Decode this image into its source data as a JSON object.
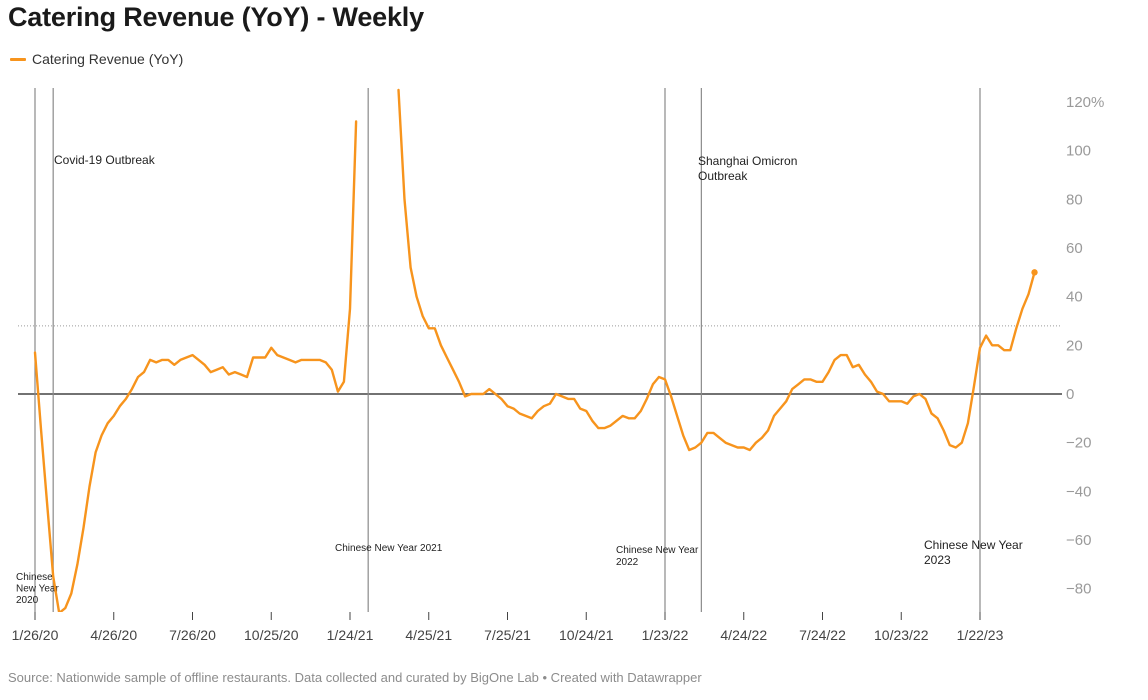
{
  "title": "Catering Revenue (YoY) - Weekly",
  "legend": {
    "label": "Catering Revenue (YoY)",
    "color": "#f7941d"
  },
  "source": "Source: Nationwide sample of offline restaurants. Data collected and curated by BigOne Lab • Created with Datawrapper",
  "chart_data": {
    "type": "line",
    "title": "Catering Revenue (YoY) - Weekly",
    "series": [
      {
        "name": "Catering Revenue (YoY)",
        "color": "#f7941d",
        "values": [
          [
            "2020-01-26",
            17
          ],
          [
            "2020-02-02",
            -15
          ],
          [
            "2020-02-09",
            -45
          ],
          [
            "2020-02-16",
            -75
          ],
          [
            "2020-02-23",
            -90
          ],
          [
            "2020-03-01",
            -88
          ],
          [
            "2020-03-08",
            -82
          ],
          [
            "2020-03-15",
            -70
          ],
          [
            "2020-03-22",
            -55
          ],
          [
            "2020-03-29",
            -38
          ],
          [
            "2020-04-05",
            -24
          ],
          [
            "2020-04-12",
            -17
          ],
          [
            "2020-04-19",
            -12
          ],
          [
            "2020-04-26",
            -9
          ],
          [
            "2020-05-03",
            -5
          ],
          [
            "2020-05-10",
            -2
          ],
          [
            "2020-05-17",
            2
          ],
          [
            "2020-05-24",
            7
          ],
          [
            "2020-05-31",
            9
          ],
          [
            "2020-06-07",
            14
          ],
          [
            "2020-06-14",
            13
          ],
          [
            "2020-06-21",
            14
          ],
          [
            "2020-06-28",
            14
          ],
          [
            "2020-07-05",
            12
          ],
          [
            "2020-07-12",
            14
          ],
          [
            "2020-07-19",
            15
          ],
          [
            "2020-07-26",
            16
          ],
          [
            "2020-08-02",
            14
          ],
          [
            "2020-08-09",
            12
          ],
          [
            "2020-08-16",
            9
          ],
          [
            "2020-08-23",
            10
          ],
          [
            "2020-08-30",
            11
          ],
          [
            "2020-09-06",
            8
          ],
          [
            "2020-09-13",
            9
          ],
          [
            "2020-09-20",
            8
          ],
          [
            "2020-09-27",
            7
          ],
          [
            "2020-10-04",
            15
          ],
          [
            "2020-10-11",
            15
          ],
          [
            "2020-10-18",
            15
          ],
          [
            "2020-10-25",
            19
          ],
          [
            "2020-11-01",
            16
          ],
          [
            "2020-11-08",
            15
          ],
          [
            "2020-11-15",
            14
          ],
          [
            "2020-11-22",
            13
          ],
          [
            "2020-11-29",
            14
          ],
          [
            "2020-12-06",
            14
          ],
          [
            "2020-12-13",
            14
          ],
          [
            "2020-12-20",
            14
          ],
          [
            "2020-12-27",
            13
          ],
          [
            "2021-01-03",
            10
          ],
          [
            "2021-01-10",
            1
          ],
          [
            "2021-01-17",
            5
          ],
          [
            "2021-01-24",
            35
          ],
          [
            "2021-01-31",
            112
          ],
          [
            "2021-03-21",
            125
          ],
          [
            "2021-03-28",
            80
          ],
          [
            "2021-04-04",
            52
          ],
          [
            "2021-04-11",
            40
          ],
          [
            "2021-04-18",
            32
          ],
          [
            "2021-04-25",
            27
          ],
          [
            "2021-05-02",
            27
          ],
          [
            "2021-05-09",
            20
          ],
          [
            "2021-05-16",
            15
          ],
          [
            "2021-05-23",
            10
          ],
          [
            "2021-05-30",
            5
          ],
          [
            "2021-06-06",
            -1
          ],
          [
            "2021-06-13",
            0
          ],
          [
            "2021-06-20",
            0
          ],
          [
            "2021-06-27",
            0
          ],
          [
            "2021-07-04",
            2
          ],
          [
            "2021-07-11",
            0
          ],
          [
            "2021-07-18",
            -2
          ],
          [
            "2021-07-25",
            -5
          ],
          [
            "2021-08-01",
            -6
          ],
          [
            "2021-08-08",
            -8
          ],
          [
            "2021-08-15",
            -9
          ],
          [
            "2021-08-22",
            -10
          ],
          [
            "2021-08-29",
            -7
          ],
          [
            "2021-09-05",
            -5
          ],
          [
            "2021-09-12",
            -4
          ],
          [
            "2021-09-19",
            0
          ],
          [
            "2021-09-26",
            -1
          ],
          [
            "2021-10-03",
            -2
          ],
          [
            "2021-10-10",
            -2
          ],
          [
            "2021-10-17",
            -6
          ],
          [
            "2021-10-24",
            -7
          ],
          [
            "2021-10-31",
            -11
          ],
          [
            "2021-11-07",
            -14
          ],
          [
            "2021-11-14",
            -14
          ],
          [
            "2021-11-21",
            -13
          ],
          [
            "2021-11-28",
            -11
          ],
          [
            "2021-12-05",
            -9
          ],
          [
            "2021-12-12",
            -10
          ],
          [
            "2021-12-19",
            -10
          ],
          [
            "2021-12-26",
            -7
          ],
          [
            "2022-01-02",
            -2
          ],
          [
            "2022-01-09",
            4
          ],
          [
            "2022-01-16",
            7
          ],
          [
            "2022-01-23",
            6
          ],
          [
            "2022-01-30",
            -1
          ],
          [
            "2022-02-06",
            -9
          ],
          [
            "2022-02-13",
            -17
          ],
          [
            "2022-02-20",
            -23
          ],
          [
            "2022-02-27",
            -22
          ],
          [
            "2022-03-06",
            -20
          ],
          [
            "2022-03-13",
            -16
          ],
          [
            "2022-03-20",
            -16
          ],
          [
            "2022-03-27",
            -18
          ],
          [
            "2022-04-03",
            -20
          ],
          [
            "2022-04-10",
            -21
          ],
          [
            "2022-04-17",
            -22
          ],
          [
            "2022-04-24",
            -22
          ],
          [
            "2022-05-01",
            -23
          ],
          [
            "2022-05-08",
            -20
          ],
          [
            "2022-05-15",
            -18
          ],
          [
            "2022-05-22",
            -15
          ],
          [
            "2022-05-29",
            -9
          ],
          [
            "2022-06-05",
            -6
          ],
          [
            "2022-06-12",
            -3
          ],
          [
            "2022-06-19",
            2
          ],
          [
            "2022-06-26",
            4
          ],
          [
            "2022-07-03",
            6
          ],
          [
            "2022-07-10",
            6
          ],
          [
            "2022-07-17",
            5
          ],
          [
            "2022-07-24",
            5
          ],
          [
            "2022-07-31",
            9
          ],
          [
            "2022-08-07",
            14
          ],
          [
            "2022-08-14",
            16
          ],
          [
            "2022-08-21",
            16
          ],
          [
            "2022-08-28",
            11
          ],
          [
            "2022-09-04",
            12
          ],
          [
            "2022-09-11",
            8
          ],
          [
            "2022-09-18",
            5
          ],
          [
            "2022-09-25",
            1
          ],
          [
            "2022-10-02",
            0
          ],
          [
            "2022-10-09",
            -3
          ],
          [
            "2022-10-16",
            -3
          ],
          [
            "2022-10-23",
            -3
          ],
          [
            "2022-10-30",
            -4
          ],
          [
            "2022-11-06",
            -1
          ],
          [
            "2022-11-13",
            0
          ],
          [
            "2022-11-20",
            -2
          ],
          [
            "2022-11-27",
            -8
          ],
          [
            "2022-12-04",
            -10
          ],
          [
            "2022-12-11",
            -15
          ],
          [
            "2022-12-18",
            -21
          ],
          [
            "2022-12-25",
            -22
          ],
          [
            "2023-01-01",
            -20
          ],
          [
            "2023-01-08",
            -12
          ],
          [
            "2023-01-15",
            3
          ],
          [
            "2023-01-22",
            19
          ],
          [
            "2023-01-29",
            24
          ],
          [
            "2023-02-05",
            20
          ],
          [
            "2023-02-12",
            20
          ],
          [
            "2023-02-19",
            18
          ],
          [
            "2023-02-26",
            18
          ],
          [
            "2023-03-05",
            27
          ],
          [
            "2023-03-12",
            35
          ],
          [
            "2023-03-19",
            41
          ],
          [
            "2023-03-26",
            50
          ]
        ]
      }
    ],
    "ylim": [
      -90,
      120
    ],
    "y_ticks": [
      -80,
      -60,
      -40,
      -20,
      0,
      20,
      40,
      60,
      80,
      100,
      120
    ],
    "y_tick_labels": [
      "−80",
      "−60",
      "−40",
      "−20",
      "0",
      "20",
      "40",
      "60",
      "80",
      "100",
      "120%"
    ],
    "x_ticks": [
      [
        "2020-01-26",
        "1/26/20"
      ],
      [
        "2020-04-26",
        "4/26/20"
      ],
      [
        "2020-07-26",
        "7/26/20"
      ],
      [
        "2020-10-25",
        "10/25/20"
      ],
      [
        "2021-01-24",
        "1/24/21"
      ],
      [
        "2021-04-25",
        "4/25/21"
      ],
      [
        "2021-07-25",
        "7/25/21"
      ],
      [
        "2021-10-24",
        "10/24/21"
      ],
      [
        "2022-01-23",
        "1/23/22"
      ],
      [
        "2022-04-24",
        "4/24/22"
      ],
      [
        "2022-07-24",
        "7/24/22"
      ],
      [
        "2022-10-23",
        "10/23/22"
      ],
      [
        "2023-01-22",
        "1/22/23"
      ]
    ],
    "reference_line_y": 28,
    "vertical_lines": [
      {
        "date": "2020-01-26",
        "label": "Chinese New Year 2020",
        "lines": [
          "Chinese",
          "New Year",
          "2020"
        ]
      },
      {
        "date": "2020-02-16",
        "label": "Covid-19 Outbreak",
        "lines": [
          "Covid-19 Outbreak"
        ]
      },
      {
        "date": "2021-02-14",
        "label": "Chinese New Year 2021",
        "lines": [
          "Chinese New Year 2021"
        ]
      },
      {
        "date": "2022-01-23",
        "label": "Chinese New Year 2022",
        "lines": [
          "Chinese New Year",
          "2022"
        ]
      },
      {
        "date": "2022-03-06",
        "label": "Shanghai Omicron Outbreak",
        "lines": [
          "Shanghai Omicron",
          "Outbreak"
        ]
      },
      {
        "date": "2023-01-22",
        "label": "Chinese New Year 2023",
        "lines": [
          "Chinese New Year",
          "2023"
        ]
      }
    ],
    "grid": false,
    "legend_position": "top-left"
  }
}
